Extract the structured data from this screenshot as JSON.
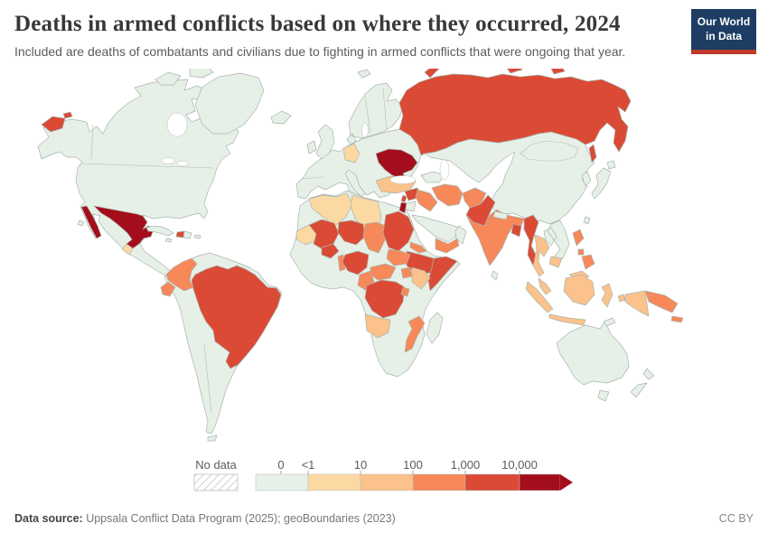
{
  "header": {
    "title": "Deaths in armed conflicts based on where they occurred, 2024",
    "subtitle": "Included are deaths of combatants and civilians due to fighting in armed conflicts that were ongoing that year."
  },
  "logo": {
    "line1": "Our World",
    "line2": "in Data",
    "bg": "#1d3d63",
    "accent": "#c0392b"
  },
  "legend": {
    "no_data_label": "No data",
    "ticks": [
      "0",
      "<1",
      "10",
      "100",
      "1,000",
      "10,000"
    ]
  },
  "footer": {
    "source_label": "Data source:",
    "source_text": " Uppsala Conflict Data Program (2025); geoBoundaries (2023)",
    "license": "CC BY"
  },
  "chart_data": {
    "type": "choropleth_map",
    "title": "Deaths in armed conflicts based on where they occurred, 2024",
    "year": 2024,
    "unit": "deaths",
    "legend_position": "bottom",
    "bins": [
      {
        "label": "0",
        "color": "#e6f0e7"
      },
      {
        "label": "<1-10",
        "color": "#fcd9a3"
      },
      {
        "label": "10-100",
        "color": "#fbc28b"
      },
      {
        "label": "100-1,000",
        "color": "#f6885a"
      },
      {
        "label": "1,000-10,000",
        "color": "#da4a35"
      },
      {
        "label": ">10,000",
        "color": "#a40e1c"
      }
    ],
    "no_data_style": "hatched",
    "countries": {
      "Ukraine": ">10,000",
      "Mexico": ">10,000",
      "Palestine": ">10,000",
      "Russia": "1,000-10,000",
      "Brazil": "1,000-10,000",
      "Haiti": "1,000-10,000",
      "Syria": "1,000-10,000",
      "Lebanon": "1,000-10,000",
      "Israel": "1,000-10,000",
      "Pakistan": "1,000-10,000",
      "Bangladesh": "1,000-10,000",
      "Myanmar": "1,000-10,000",
      "Mali": "1,000-10,000",
      "Burkina Faso": "1,000-10,000",
      "Niger": "1,000-10,000",
      "Nigeria": "1,000-10,000",
      "Sudan": "1,000-10,000",
      "Ethiopia": "1,000-10,000",
      "Somalia": "1,000-10,000",
      "Democratic Republic of Congo": "1,000-10,000",
      "Colombia": "100-1,000",
      "Ecuador": "100-1,000",
      "Iraq": "100-1,000",
      "Iran": "100-1,000",
      "Afghanistan": "100-1,000",
      "India": "100-1,000",
      "Yemen": "100-1,000",
      "Chad": "100-1,000",
      "Cameroon": "100-1,000",
      "Central African Republic": "100-1,000",
      "South Sudan": "100-1,000",
      "Uganda": "100-1,000",
      "Burundi": "100-1,000",
      "Benin": "100-1,000",
      "Eritrea": "100-1,000",
      "Mozambique": "100-1,000",
      "Philippines": "100-1,000",
      "Papua New Guinea": "100-1,000",
      "Turkey": "10-100",
      "Thailand": "10-100",
      "Cambodia": "10-100",
      "Malaysia": "10-100",
      "Indonesia": "10-100",
      "Angola": "10-100",
      "Kenya": "10-100",
      "Germany": "<1-10",
      "Algeria": "<1-10",
      "Libya": "<1-10",
      "Mauritania": "<1-10",
      "Guatemala": "<1-10",
      "Cuba": "0",
      "Dominican Republic": "0",
      "Jamaica": "0",
      "Puerto Rico": "0",
      "Venezuela": "0",
      "Peru": "0",
      "Bolivia": "0",
      "Chile": "0",
      "Argentina": "0",
      "United States": "0",
      "Canada": "0",
      "Greenland": "0",
      "Iceland": "0",
      "United Kingdom": "0",
      "Ireland": "0",
      "Norway": "0",
      "Sweden": "0",
      "Finland": "0",
      "Italy": "0",
      "Jordan": "0",
      "Saudi Arabia": "0",
      "Oman": "0",
      "Kazakhstan": "0",
      "China": "0",
      "Mongolia": "0",
      "Japan": "0",
      "South Korea": "0",
      "Taiwan": "0",
      "Nepal": "0",
      "Sri Lanka": "0",
      "Laos": "0",
      "Vietnam": "0",
      "Australia": "0",
      "New Zealand": "0",
      "Madagascar": "0",
      "South Africa": "0",
      "Egypt": "0",
      "Morocco": "0",
      "Georgia": "0",
      "Hawaii": "0",
      "Timor": "0",
      "Svalbard": "0"
    }
  }
}
